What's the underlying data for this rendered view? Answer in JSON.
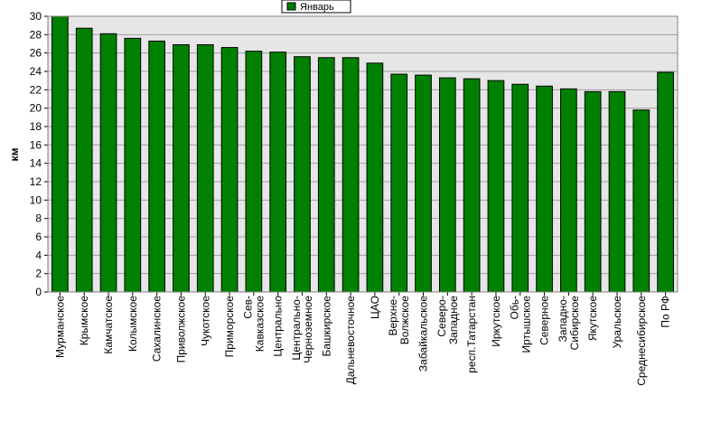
{
  "chart_data": {
    "type": "bar",
    "ylabel": "км",
    "ylim": [
      0,
      30
    ],
    "ytick_step": 2,
    "grid": true,
    "legend_position": "top-center",
    "plot_background": "#e6e6e6",
    "categories": [
      "Мурманское",
      "Крымское",
      "Камчатское",
      "Колымское",
      "Сахалинское",
      "Приволжское",
      "Чукотское",
      "Приморское",
      "Сев-Кавказское",
      "Центрально",
      "Центрально-Черноземное",
      "Башкирское",
      "Дальневосточное",
      "ЦАО",
      "Верхне-Волжское",
      "Забайкальское",
      "Северо-Западное",
      "респ.Татарстан",
      "Иркутское",
      "Обь-Иртышское",
      "Северное",
      "Западно-Сибирское",
      "Якутское",
      "Уральское",
      "Среднесибирское",
      "По РФ"
    ],
    "category_lines": [
      [
        "Мурманское"
      ],
      [
        "Крымское"
      ],
      [
        "Камчатское"
      ],
      [
        "Колымское"
      ],
      [
        "Сахалинское"
      ],
      [
        "Приволжское"
      ],
      [
        "Чукотское"
      ],
      [
        "Приморское"
      ],
      [
        "Сев-",
        "Кавказское"
      ],
      [
        "Центрально"
      ],
      [
        "Центрально-",
        "Черноземное"
      ],
      [
        "Башкирское"
      ],
      [
        "Дальневосточное"
      ],
      [
        "ЦАО"
      ],
      [
        "Верхне-",
        "Волжское"
      ],
      [
        "Забайкальское"
      ],
      [
        "Северо-",
        "Западное"
      ],
      [
        "респ.Татарстан"
      ],
      [
        "Иркутское"
      ],
      [
        "Обь-",
        "Иртышское"
      ],
      [
        "Северное"
      ],
      [
        "Западно-",
        "Сибирское"
      ],
      [
        "Якутское"
      ],
      [
        "Уральское"
      ],
      [
        "Среднесибирское"
      ],
      [
        "По РФ"
      ]
    ],
    "series": [
      {
        "name": "Январь",
        "color": "#008000",
        "values": [
          30.0,
          28.7,
          28.1,
          27.6,
          27.3,
          26.9,
          26.9,
          26.6,
          26.2,
          26.1,
          25.6,
          25.5,
          25.5,
          24.9,
          23.7,
          23.6,
          23.3,
          23.2,
          23.0,
          22.6,
          22.4,
          22.1,
          21.8,
          21.8,
          19.8,
          23.9
        ]
      }
    ]
  }
}
